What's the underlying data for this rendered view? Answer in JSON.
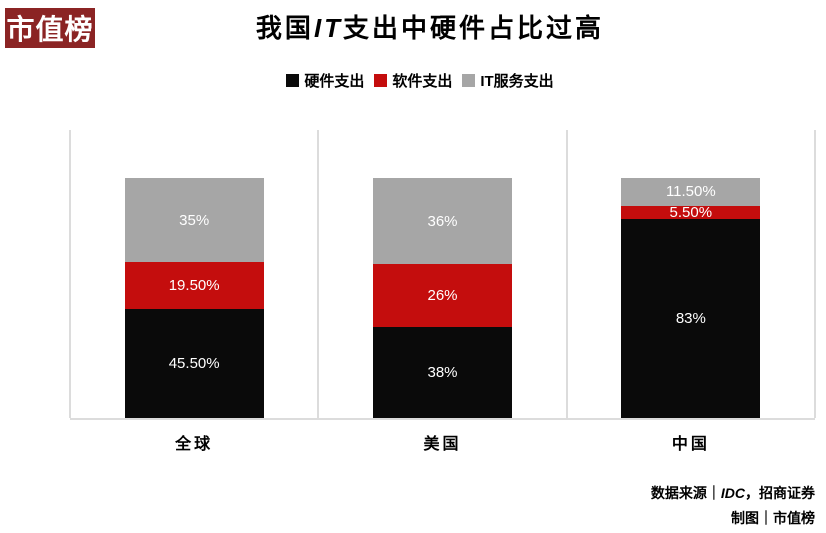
{
  "logo": {
    "text": "市值榜",
    "bg_color": "#8B2424",
    "text_color": "#FFFFFF"
  },
  "title": {
    "prefix": "我国",
    "italic": "IT",
    "suffix": "支出中硬件占比过高",
    "full": "我国IT支出中硬件占比过高"
  },
  "legend": {
    "items": [
      {
        "label": "硬件支出",
        "color": "#0A0A0A"
      },
      {
        "label": "软件支出",
        "color": "#C40D0D"
      },
      {
        "label": "IT服务支出",
        "color": "#A6A6A6"
      }
    ]
  },
  "chart_data": {
    "type": "bar",
    "subtype": "stacked-percentage-column",
    "title": "我国IT支出中硬件占比过高",
    "categories": [
      "全球",
      "美国",
      "中国"
    ],
    "series": [
      {
        "name": "硬件支出",
        "color": "#0A0A0A",
        "values": [
          45.5,
          38,
          83
        ],
        "labels": [
          "45.50%",
          "38%",
          "83%"
        ]
      },
      {
        "name": "软件支出",
        "color": "#C40D0D",
        "values": [
          19.5,
          26,
          5.5
        ],
        "labels": [
          "19.50%",
          "26%",
          "5.50%"
        ]
      },
      {
        "name": "IT服务支出",
        "color": "#A6A6A6",
        "values": [
          35,
          36,
          11.5
        ],
        "labels": [
          "35%",
          "36%",
          "11.50%"
        ]
      }
    ],
    "xlabel": "",
    "ylabel": "",
    "unit": "%",
    "ylim": [
      0,
      120
    ],
    "grid": "vertical category separators only, light gray",
    "legend_position": "top center",
    "value_label_color": "#FFFFFF"
  },
  "source": {
    "line1_prefix": "数据来源｜",
    "line1_italic": "IDC",
    "line1_suffix": "，招商证券",
    "line2": "制图｜市值榜"
  }
}
